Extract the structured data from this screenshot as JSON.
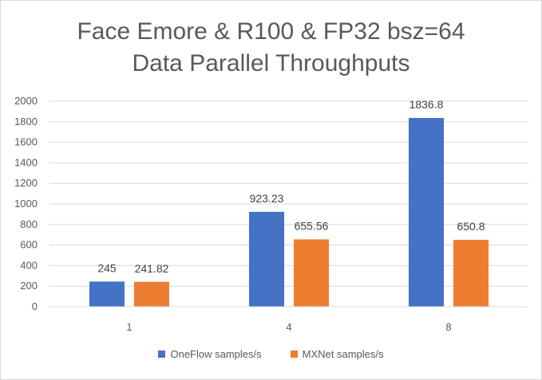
{
  "chart_data": {
    "type": "bar",
    "title_lines": [
      "Face Emore & R100 & FP32 bsz=64",
      "Data Parallel Throughputs"
    ],
    "categories": [
      "1",
      "4",
      "8"
    ],
    "series": [
      {
        "name": "OneFlow samples/s",
        "values": [
          245,
          923.23,
          1836.8
        ],
        "labels": [
          "245",
          "923.23",
          "1836.8"
        ],
        "color": "#4472c4"
      },
      {
        "name": "MXNet samples/s",
        "values": [
          241.82,
          655.56,
          650.8
        ],
        "labels": [
          "241.82",
          "655.56",
          "650.8"
        ],
        "color": "#ed7d31"
      }
    ],
    "ylim": [
      0,
      2000
    ],
    "yticks": [
      "0",
      "200",
      "400",
      "600",
      "800",
      "1000",
      "1200",
      "1400",
      "1600",
      "1800",
      "2000"
    ],
    "grid": true,
    "legend_position": "bottom"
  }
}
